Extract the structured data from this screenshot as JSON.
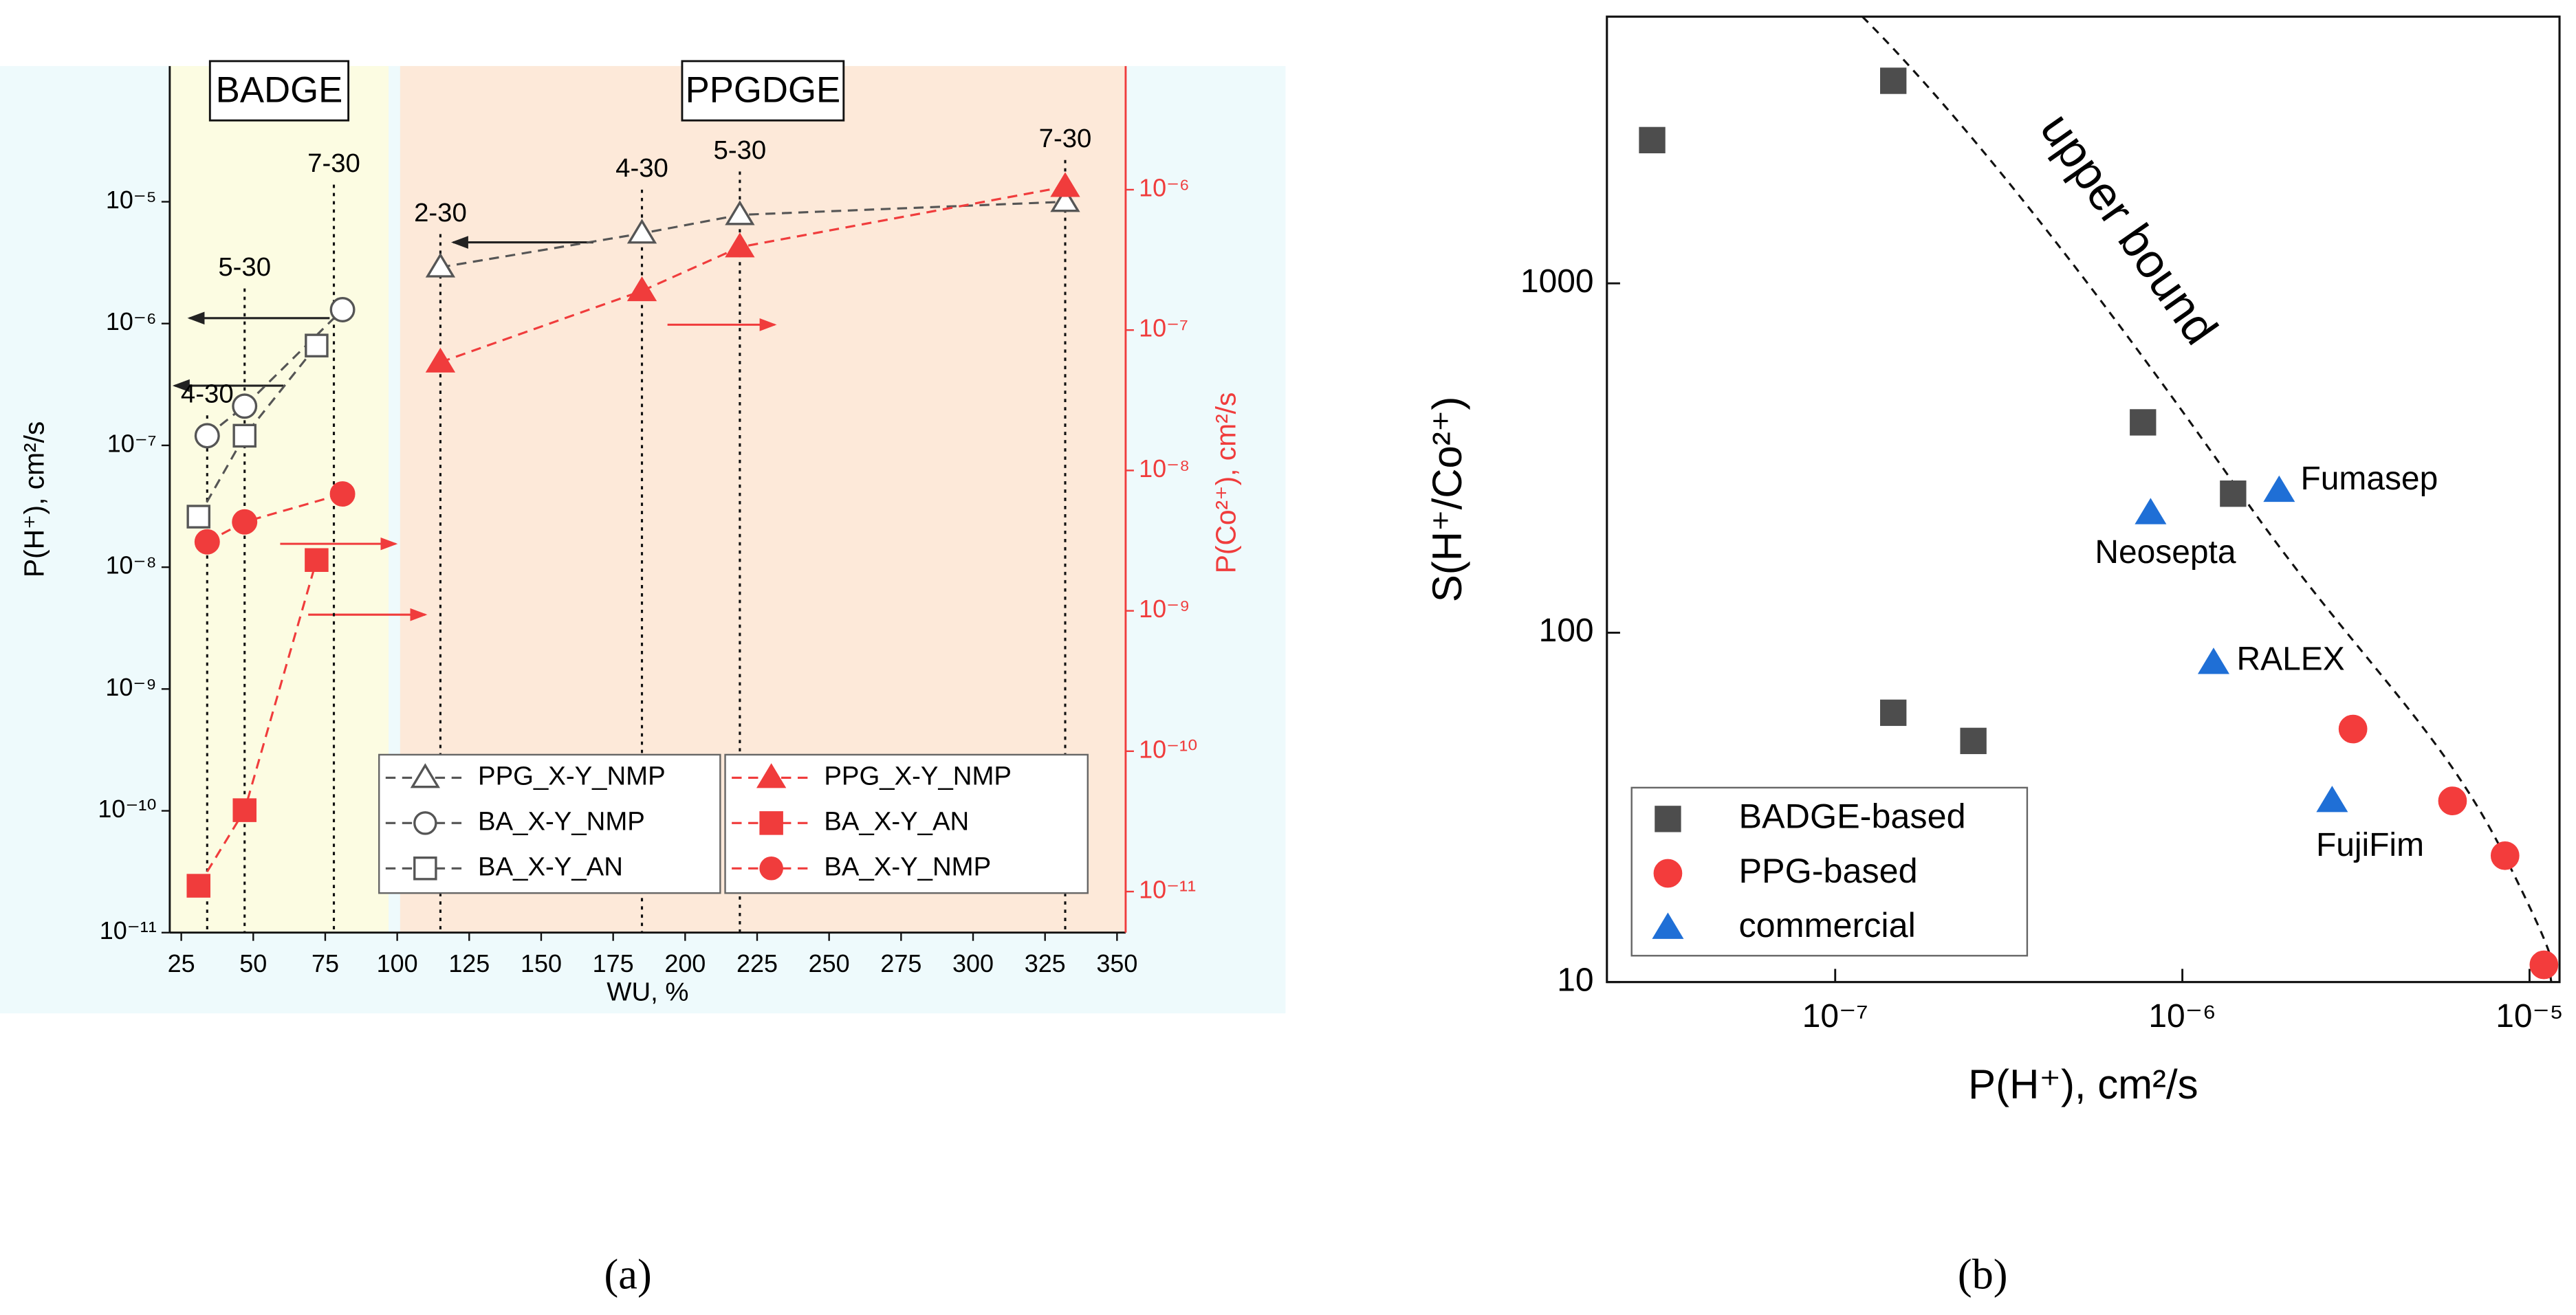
{
  "chart_data": [
    {
      "type": "line",
      "label": "(a)",
      "xlabel": "WU, %",
      "ylabel": "P(H⁺), cm²/s",
      "y2label": "P(Co²⁺), cm²/s",
      "xlim": [
        21,
        353
      ],
      "xticks": [
        25,
        50,
        75,
        100,
        125,
        150,
        175,
        200,
        225,
        250,
        275,
        300,
        325,
        350
      ],
      "log_y": true,
      "ylim": [
        1e-11,
        0.00013
      ],
      "yticks": [
        {
          "value": 1e-11,
          "label": "10⁻¹¹"
        },
        {
          "value": 1e-10,
          "label": "10⁻¹⁰"
        },
        {
          "value": 1e-09,
          "label": "10⁻⁹"
        },
        {
          "value": 1e-08,
          "label": "10⁻⁸"
        },
        {
          "value": 1e-07,
          "label": "10⁻⁷"
        },
        {
          "value": 1e-06,
          "label": "10⁻⁶"
        },
        {
          "value": 1e-05,
          "label": "10⁻⁵"
        }
      ],
      "log_y2": true,
      "y2lim": [
        5.1e-12,
        7.6e-06
      ],
      "y2color": "#f03c3c",
      "y2ticks": [
        {
          "value": 1e-11,
          "label": "10⁻¹¹"
        },
        {
          "value": 1e-10,
          "label": "10⁻¹⁰"
        },
        {
          "value": 1e-09,
          "label": "10⁻⁹"
        },
        {
          "value": 1e-08,
          "label": "10⁻⁸"
        },
        {
          "value": 1e-07,
          "label": "10⁻⁷"
        },
        {
          "value": 1e-06,
          "label": "10⁻⁶"
        }
      ],
      "regions": [
        {
          "label": "BADGE",
          "x": [
            21,
            97
          ],
          "color": "#fcfce2"
        },
        {
          "label": "PPGDGE",
          "x": [
            101,
            353
          ],
          "color": "#fde9d9"
        }
      ],
      "annotations": [
        {
          "text": "4-30",
          "x": 34
        },
        {
          "text": "5-30",
          "x": 47
        },
        {
          "text": "7-30",
          "x": 78
        },
        {
          "text": "2-30",
          "x": 115
        },
        {
          "text": "4-30",
          "x": 185
        },
        {
          "text": "5-30",
          "x": 219
        },
        {
          "text": "7-30",
          "x": 332
        }
      ],
      "series": [
        {
          "name": "PPG_X-Y_NMP",
          "color": "#555555",
          "marker": "triangle",
          "filled": false,
          "x": [
            115,
            185,
            219,
            332
          ],
          "values": [
            2.9e-06,
            5.5e-06,
            7.8e-06,
            1e-05
          ]
        },
        {
          "name": "BA_X-Y_NMP",
          "color": "#555555",
          "marker": "circle",
          "filled": false,
          "x": [
            34,
            47,
            81
          ],
          "values": [
            1.2e-07,
            2.1e-07,
            1.3e-06
          ]
        },
        {
          "name": "BA_X-Y_AN",
          "color": "#555555",
          "marker": "square",
          "filled": false,
          "x": [
            31,
            47,
            72
          ],
          "values": [
            2.6e-08,
            1.2e-07,
            6.6e-07
          ]
        },
        {
          "name": "PPG_X-Y_NMP",
          "color": "#f03c3c",
          "marker": "triangle",
          "filled": true,
          "axis": "y2",
          "x": [
            115,
            185,
            219,
            332
          ],
          "values": [
            5.9e-08,
            1.9e-07,
            3.9e-07,
            1.05e-06
          ]
        },
        {
          "name": "BA_X-Y_AN",
          "color": "#f03c3c",
          "marker": "square",
          "filled": true,
          "axis": "y2",
          "x": [
            31,
            47,
            72
          ],
          "values": [
            1.1e-11,
            3.8e-11,
            2.3e-09
          ]
        },
        {
          "name": "BA_X-Y_NMP",
          "color": "#f03c3c",
          "marker": "circle",
          "filled": true,
          "axis": "y2",
          "x": [
            34,
            47,
            81
          ],
          "values": [
            3.1e-09,
            4.3e-09,
            6.8e-09
          ]
        }
      ]
    },
    {
      "type": "scatter",
      "label": "(b)",
      "xlabel": "P(H⁺), cm²/s",
      "ylabel": "S(H⁺/Co²⁺)",
      "log_x": true,
      "xlim": [
        2.2e-08,
        1.22e-05
      ],
      "xticks": [
        {
          "value": 1e-07,
          "label": "10⁻⁷"
        },
        {
          "value": 1e-06,
          "label": "10⁻⁶"
        },
        {
          "value": 1e-05,
          "label": "10⁻⁵"
        }
      ],
      "log_y": true,
      "ylim": [
        10,
        5800
      ],
      "yticks": [
        10,
        100,
        1000
      ],
      "annotations": [
        {
          "text": "upper bound"
        }
      ],
      "series": [
        {
          "name": "BADGE-based",
          "color": "#4d4d4d",
          "marker": "square",
          "x": [
            2.97e-08,
            1.47e-07,
            7.7e-07,
            1.4e-06,
            1.47e-07,
            2.5e-07
          ],
          "values": [
            2570,
            3800,
            400,
            250,
            59,
            49
          ]
        },
        {
          "name": "PPG-based",
          "color": "#f33c3c",
          "marker": "circle",
          "x": [
            3.1e-06,
            6e-06,
            8.5e-06,
            1.1e-05
          ],
          "values": [
            53,
            33,
            23,
            11.2
          ]
        },
        {
          "name": "commercial",
          "color": "#1f6fd6",
          "marker": "triangle",
          "x": [
            8.1e-07,
            1.9e-06,
            1.23e-06,
            2.7e-06
          ],
          "values": [
            220,
            255,
            82,
            33
          ],
          "point_labels": [
            "Neosepta",
            "Fumasep",
            "RALEX",
            "FujiFim"
          ]
        }
      ]
    }
  ]
}
